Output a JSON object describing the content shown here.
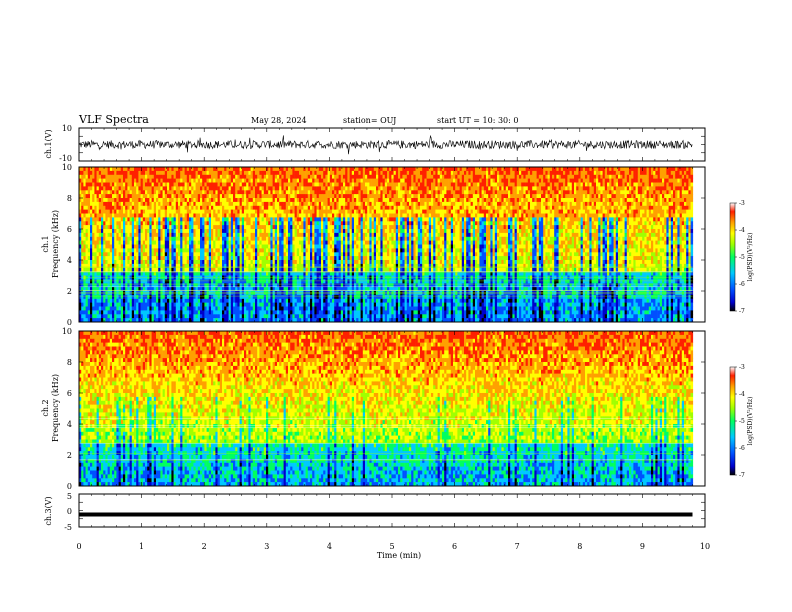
{
  "header": {
    "title": "VLF Spectra",
    "date": "May 28, 2024",
    "station": "station= OUJ",
    "start": "start UT =   10: 30: 0"
  },
  "colors": {
    "spectrogram_scale": [
      "#000000",
      "#0000cc",
      "#0050ff",
      "#00c8ff",
      "#00ff60",
      "#a0ff00",
      "#ffff00",
      "#ffa000",
      "#ff2000",
      "#ffffff"
    ],
    "trace": "#000000"
  },
  "chart_data": [
    {
      "type": "line",
      "name": "ch1-waveform",
      "ylabel": "ch.1(V)",
      "xlim": [
        0,
        10
      ],
      "ylim": [
        -10,
        10
      ],
      "yticks": [
        "10",
        "-10"
      ],
      "series": [
        {
          "values_mean": 0,
          "amplitude_band": [
            -3,
            3
          ]
        }
      ]
    },
    {
      "type": "heatmap",
      "name": "ch1-spectrogram",
      "ylabel": "ch.1\nFrequency (kHz)",
      "ylabel_lines": [
        "ch.1",
        "Frequency (kHz)"
      ],
      "xlim": [
        0,
        10
      ],
      "ylim": [
        0,
        10
      ],
      "yticks": [
        "0",
        "2",
        "4",
        "6",
        "8",
        "10"
      ],
      "data_extent_x": [
        0,
        9.8
      ],
      "colorbar": {
        "label": "log(PSD)(V²/Hz)",
        "range": [
          -7,
          -3
        ],
        "ticks": [
          "-3",
          "-4",
          "-5",
          "-6",
          "-7"
        ]
      },
      "description": "broadband noise, low PSD (blue) bursts 0-7 kHz, high PSD (red) above 8 kHz"
    },
    {
      "type": "heatmap",
      "name": "ch2-spectrogram",
      "ylabel": "ch.2\nFrequency (kHz)",
      "ylabel_lines": [
        "ch.2",
        "Frequency (kHz)"
      ],
      "xlim": [
        0,
        10
      ],
      "ylim": [
        0,
        10
      ],
      "yticks": [
        "0",
        "2",
        "4",
        "6",
        "8",
        "10"
      ],
      "data_extent_x": [
        0,
        9.8
      ],
      "colorbar": {
        "label": "log(PSD)(V²/Hz)",
        "range": [
          -7,
          -3
        ],
        "ticks": [
          "-3",
          "-4",
          "-5",
          "-6",
          "-7"
        ]
      }
    },
    {
      "type": "line",
      "name": "ch3-waveform",
      "ylabel": "ch.3(V)",
      "xlim": [
        0,
        10
      ],
      "ylim": [
        -5,
        5
      ],
      "yticks": [
        "5",
        "0",
        "-5"
      ],
      "series": [
        {
          "values_mean": -1.2
        }
      ]
    }
  ],
  "xaxis": {
    "label": "Time (min)",
    "ticks": [
      "0",
      "1",
      "2",
      "3",
      "4",
      "5",
      "6",
      "7",
      "8",
      "9",
      "10"
    ]
  }
}
